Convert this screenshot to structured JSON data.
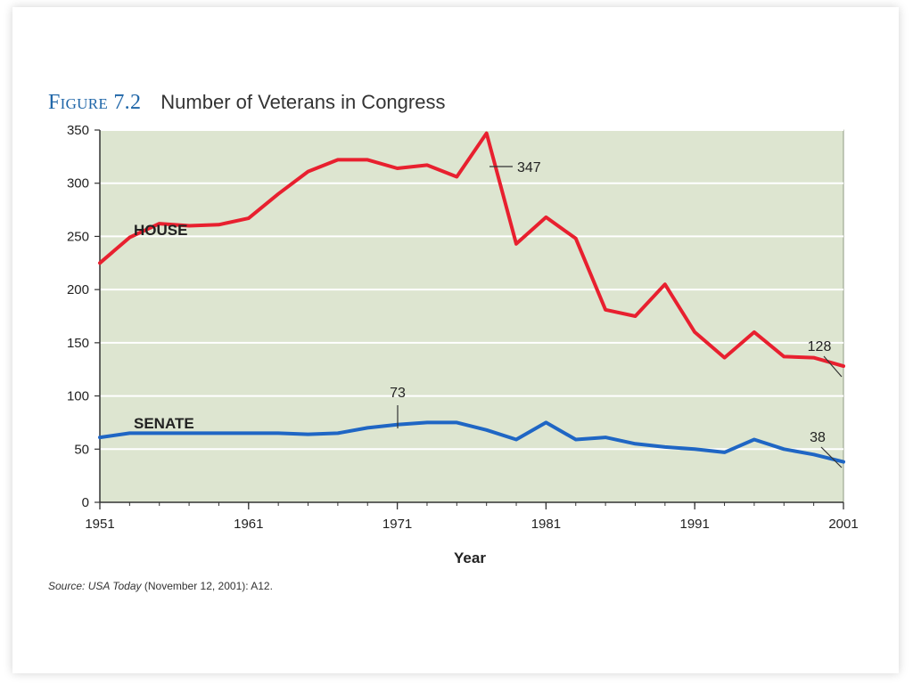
{
  "figure": {
    "label": "Figure 7.2",
    "title": "Number of Veterans in Congress"
  },
  "source": {
    "prefix": "Source:",
    "publication": "USA Today",
    "details": "(November 12, 2001): A12."
  },
  "chart_data": {
    "type": "line",
    "title": "Number of Veterans in Congress",
    "xlabel": "Year",
    "ylabel": "",
    "xlim": [
      1951,
      2001
    ],
    "ylim": [
      0,
      350
    ],
    "grid": true,
    "x_ticks": [
      "1951",
      "1961",
      "1971",
      "1981",
      "1991",
      "2001"
    ],
    "y_ticks": [
      "0",
      "50",
      "100",
      "150",
      "200",
      "250",
      "300",
      "350"
    ],
    "x_tick_values": [
      1951,
      1961,
      1971,
      1981,
      1991,
      2001
    ],
    "y_tick_values": [
      0,
      50,
      100,
      150,
      200,
      250,
      300,
      350
    ],
    "x": [
      1951,
      1953,
      1955,
      1957,
      1959,
      1961,
      1963,
      1965,
      1967,
      1969,
      1971,
      1973,
      1975,
      1977,
      1979,
      1981,
      1983,
      1985,
      1987,
      1989,
      1991,
      1993,
      1995,
      1997,
      1999,
      2001
    ],
    "series": [
      {
        "name": "HOUSE",
        "color": "#e8202f",
        "values": [
          225,
          249,
          262,
          260,
          261,
          267,
          290,
          311,
          322,
          322,
          314,
          317,
          306,
          347,
          243,
          268,
          248,
          181,
          175,
          205,
          160,
          136,
          160,
          137,
          136,
          128
        ]
      },
      {
        "name": "SENATE",
        "color": "#1f66c4",
        "values": [
          61,
          65,
          65,
          65,
          65,
          65,
          65,
          64,
          65,
          70,
          73,
          75,
          75,
          68,
          59,
          75,
          59,
          61,
          55,
          52,
          50,
          47,
          59,
          50,
          45,
          38
        ]
      }
    ],
    "annotations": [
      {
        "text": "347",
        "series": "HOUSE",
        "x": 1977,
        "y": 347
      },
      {
        "text": "128",
        "series": "HOUSE",
        "x": 2001,
        "y": 128
      },
      {
        "text": "73",
        "series": "SENATE",
        "x": 1971,
        "y": 73
      },
      {
        "text": "38",
        "series": "SENATE",
        "x": 2001,
        "y": 38
      }
    ],
    "colors": {
      "plot_background": "#dde5d0",
      "grid": "#ffffff",
      "axis": "#333333",
      "text": "#222222"
    }
  }
}
